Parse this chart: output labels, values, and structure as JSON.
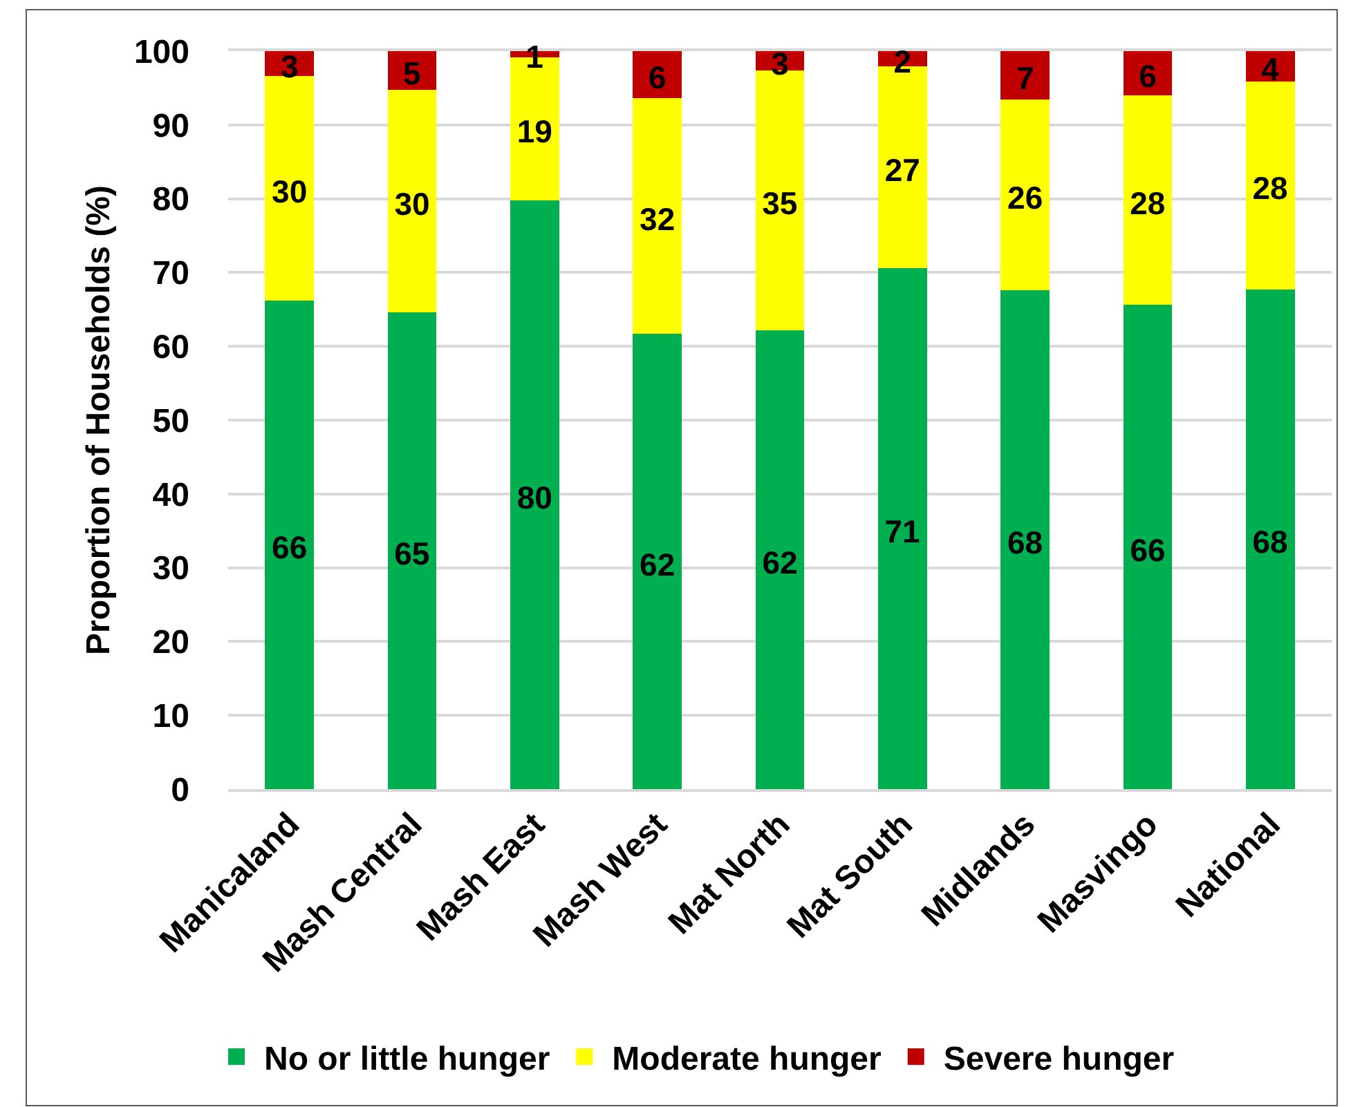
{
  "chart_data": {
    "type": "bar",
    "stacked": true,
    "ylabel": "Proportion of Households (%)",
    "categories": [
      "Manicaland",
      "Mash Central",
      "Mash East",
      "Mash West",
      "Mat North",
      "Mat South",
      "Midlands",
      "Masvingo",
      "National"
    ],
    "series": [
      {
        "name": "No or little hunger",
        "color": "#00b050",
        "values": [
          66.2,
          64.6,
          79.8,
          61.7,
          62.2,
          70.6,
          67.6,
          65.6,
          67.7
        ],
        "value_labels": [
          "66",
          "65",
          "80",
          "62",
          "62",
          "71",
          "68",
          "66",
          "68"
        ]
      },
      {
        "name": "Moderate hunger",
        "color": "#ffff00",
        "values": [
          30.4,
          30.2,
          19.4,
          31.9,
          35.2,
          27.3,
          25.8,
          28.4,
          28.2
        ],
        "value_labels": [
          "30",
          "30",
          "19",
          "32",
          "35",
          "27",
          "26",
          "28",
          "28"
        ]
      },
      {
        "name": "Severe hunger",
        "color": "#c00000",
        "values": [
          3.4,
          5.2,
          0.8,
          6.4,
          2.6,
          2.1,
          6.6,
          6.0,
          4.1
        ],
        "value_labels": [
          "3",
          "5",
          "1",
          "6",
          "3",
          "2",
          "7",
          "6",
          "4"
        ]
      }
    ],
    "ylim": [
      0,
      100
    ],
    "yticks": [
      0,
      10,
      20,
      30,
      40,
      50,
      60,
      70,
      80,
      90,
      100
    ],
    "grid": "y",
    "legend": "bottom"
  }
}
